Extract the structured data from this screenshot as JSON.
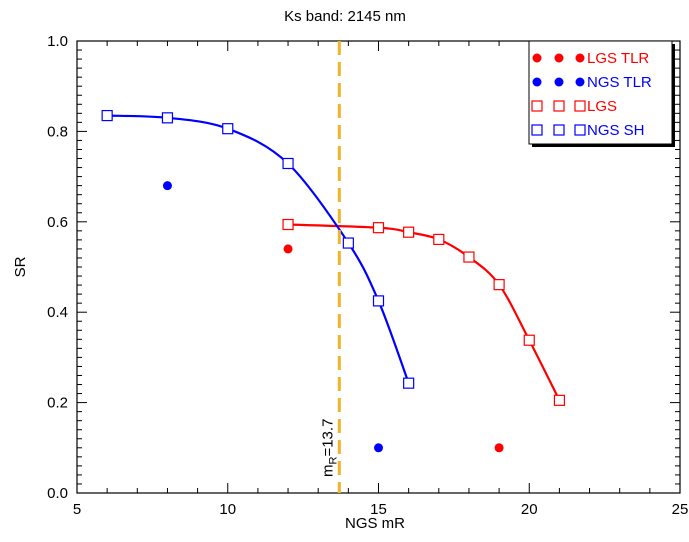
{
  "chart_data": {
    "type": "line",
    "title": "Ks band: 2145 nm",
    "xlabel": "NGS mR",
    "ylabel": "SR",
    "xlim": [
      5,
      25
    ],
    "ylim": [
      0.0,
      1.0
    ],
    "xticks": [
      "5",
      "10",
      "15",
      "20",
      "25"
    ],
    "yticks": [
      "0.0",
      "0.2",
      "0.4",
      "0.6",
      "0.8",
      "1.0"
    ],
    "grid": false,
    "legend_position": "top-right",
    "series": [
      {
        "name": "LGS TLR",
        "style": "filled-circle",
        "color": "#ff0000",
        "points": [
          [
            12,
            0.54
          ],
          [
            19,
            0.1
          ]
        ]
      },
      {
        "name": "NGS TLR",
        "style": "filled-circle",
        "color": "#0000ff",
        "points": [
          [
            8,
            0.68
          ],
          [
            15,
            0.1
          ]
        ]
      },
      {
        "name": "LGS",
        "style": "open-square-line",
        "color": "#ff0000",
        "points": [
          [
            12,
            0.594
          ],
          [
            15,
            0.587
          ],
          [
            16,
            0.577
          ],
          [
            17,
            0.561
          ],
          [
            18,
            0.522
          ],
          [
            19,
            0.461
          ],
          [
            20,
            0.338
          ],
          [
            21,
            0.205
          ]
        ]
      },
      {
        "name": "NGS SH",
        "style": "open-square-line",
        "color": "#0000ff",
        "points": [
          [
            6,
            0.835
          ],
          [
            8,
            0.83
          ],
          [
            10,
            0.806
          ],
          [
            12,
            0.729
          ],
          [
            14,
            0.553
          ],
          [
            15,
            0.425
          ],
          [
            16,
            0.243
          ]
        ]
      }
    ],
    "annotations": [
      {
        "type": "vertical-dashed-line",
        "x": 13.7,
        "color": "#f0b429",
        "label": "m",
        "label_subscript": "R",
        "label_value": "=13.7"
      }
    ]
  }
}
